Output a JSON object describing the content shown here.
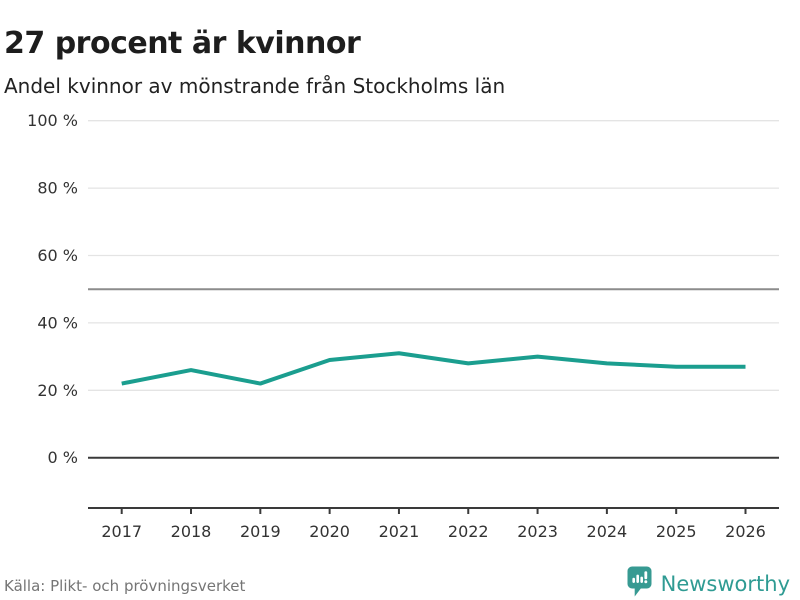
{
  "header": {
    "title": "27 procent är kvinnor",
    "subtitle": "Andel kvinnor av mönstrande från Stockholms län"
  },
  "chart_data": {
    "type": "line",
    "title": "27 procent är kvinnor",
    "subtitle": "Andel kvinnor av mönstrande från Stockholms län",
    "x": [
      2017,
      2018,
      2019,
      2020,
      2021,
      2022,
      2023,
      2024,
      2025,
      2026
    ],
    "xtick_labels": [
      "2017",
      "2018",
      "2019",
      "2020",
      "2021",
      "2022",
      "2023",
      "2024",
      "2025",
      "2026"
    ],
    "series": [
      {
        "name": "Andel kvinnor av mönstrande, Stockholms län",
        "values": [
          22,
          26,
          22,
          29,
          31,
          28,
          30,
          28,
          27,
          27
        ]
      }
    ],
    "ylim": [
      0,
      100
    ],
    "yticks": [
      0,
      20,
      40,
      60,
      80,
      100
    ],
    "ytick_labels": [
      "0 %",
      "20 %",
      "40 %",
      "60 %",
      "80 %",
      "100 %"
    ],
    "reference_line": 50,
    "grid": true,
    "legend_position": "none",
    "xlabel": "",
    "ylabel": ""
  },
  "footer": {
    "source": "Källa: Plikt- och prövningsverket",
    "brand": "Newsworthy"
  },
  "colors": {
    "line": "#1b9e8f",
    "grid_light": "#e4e4e4",
    "grid_reference": "#8c8c8c",
    "axis_dark": "#3a3a3a",
    "tick_text": "#333333",
    "title_text": "#1d1d1d",
    "source_text": "#757575",
    "brand_teal": "#2f9b93"
  }
}
